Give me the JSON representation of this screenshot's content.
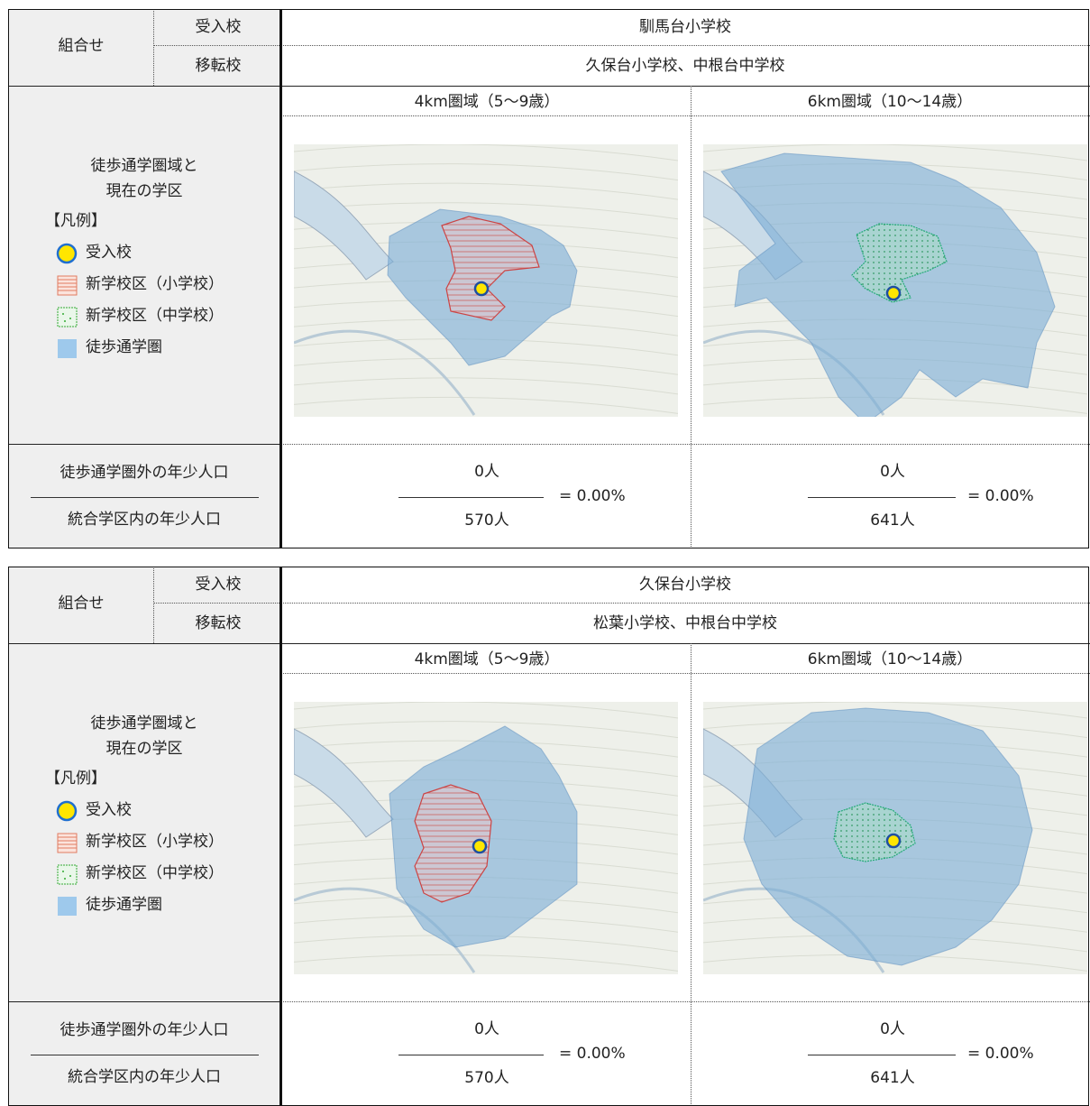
{
  "tables": [
    {
      "combo_label": "組合せ",
      "receiving_label": "受入校",
      "receiving": "馴馬台小学校",
      "transfer_label": "移転校",
      "transfer": "久保台小学校、中根台中学校",
      "area_title": [
        "徒歩通学圏域と",
        "現在の学区"
      ],
      "legend": {
        "title": "【凡例】",
        "items": [
          "受入校",
          "新学校区（小学校）",
          "新学校区（中学校）",
          "徒歩通学圏"
        ]
      },
      "population_labels": {
        "numerator": "徒歩通学圏外の年少人口",
        "denominator": "統合学区内の年少人口"
      },
      "zones": [
        {
          "header": "4km圏域（5〜9歳）",
          "numerator": "0人",
          "denominator": "570人",
          "ratio": "= 0.00%"
        },
        {
          "header": "6km圏域（10〜14歳）",
          "numerator": "0人",
          "denominator": "641人",
          "ratio": "= 0.00%"
        }
      ]
    },
    {
      "combo_label": "組合せ",
      "receiving_label": "受入校",
      "receiving": "久保台小学校",
      "transfer_label": "移転校",
      "transfer": "松葉小学校、中根台中学校",
      "area_title": [
        "徒歩通学圏域と",
        "現在の学区"
      ],
      "legend": {
        "title": "【凡例】",
        "items": [
          "受入校",
          "新学校区（小学校）",
          "新学校区（中学校）",
          "徒歩通学圏"
        ]
      },
      "population_labels": {
        "numerator": "徒歩通学圏外の年少人口",
        "denominator": "統合学区内の年少人口"
      },
      "zones": [
        {
          "header": "4km圏域（5〜9歳）",
          "numerator": "0人",
          "denominator": "570人",
          "ratio": "= 0.00%"
        },
        {
          "header": "6km圏域（10〜14歳）",
          "numerator": "0人",
          "denominator": "641人",
          "ratio": "= 0.00%"
        }
      ]
    }
  ]
}
